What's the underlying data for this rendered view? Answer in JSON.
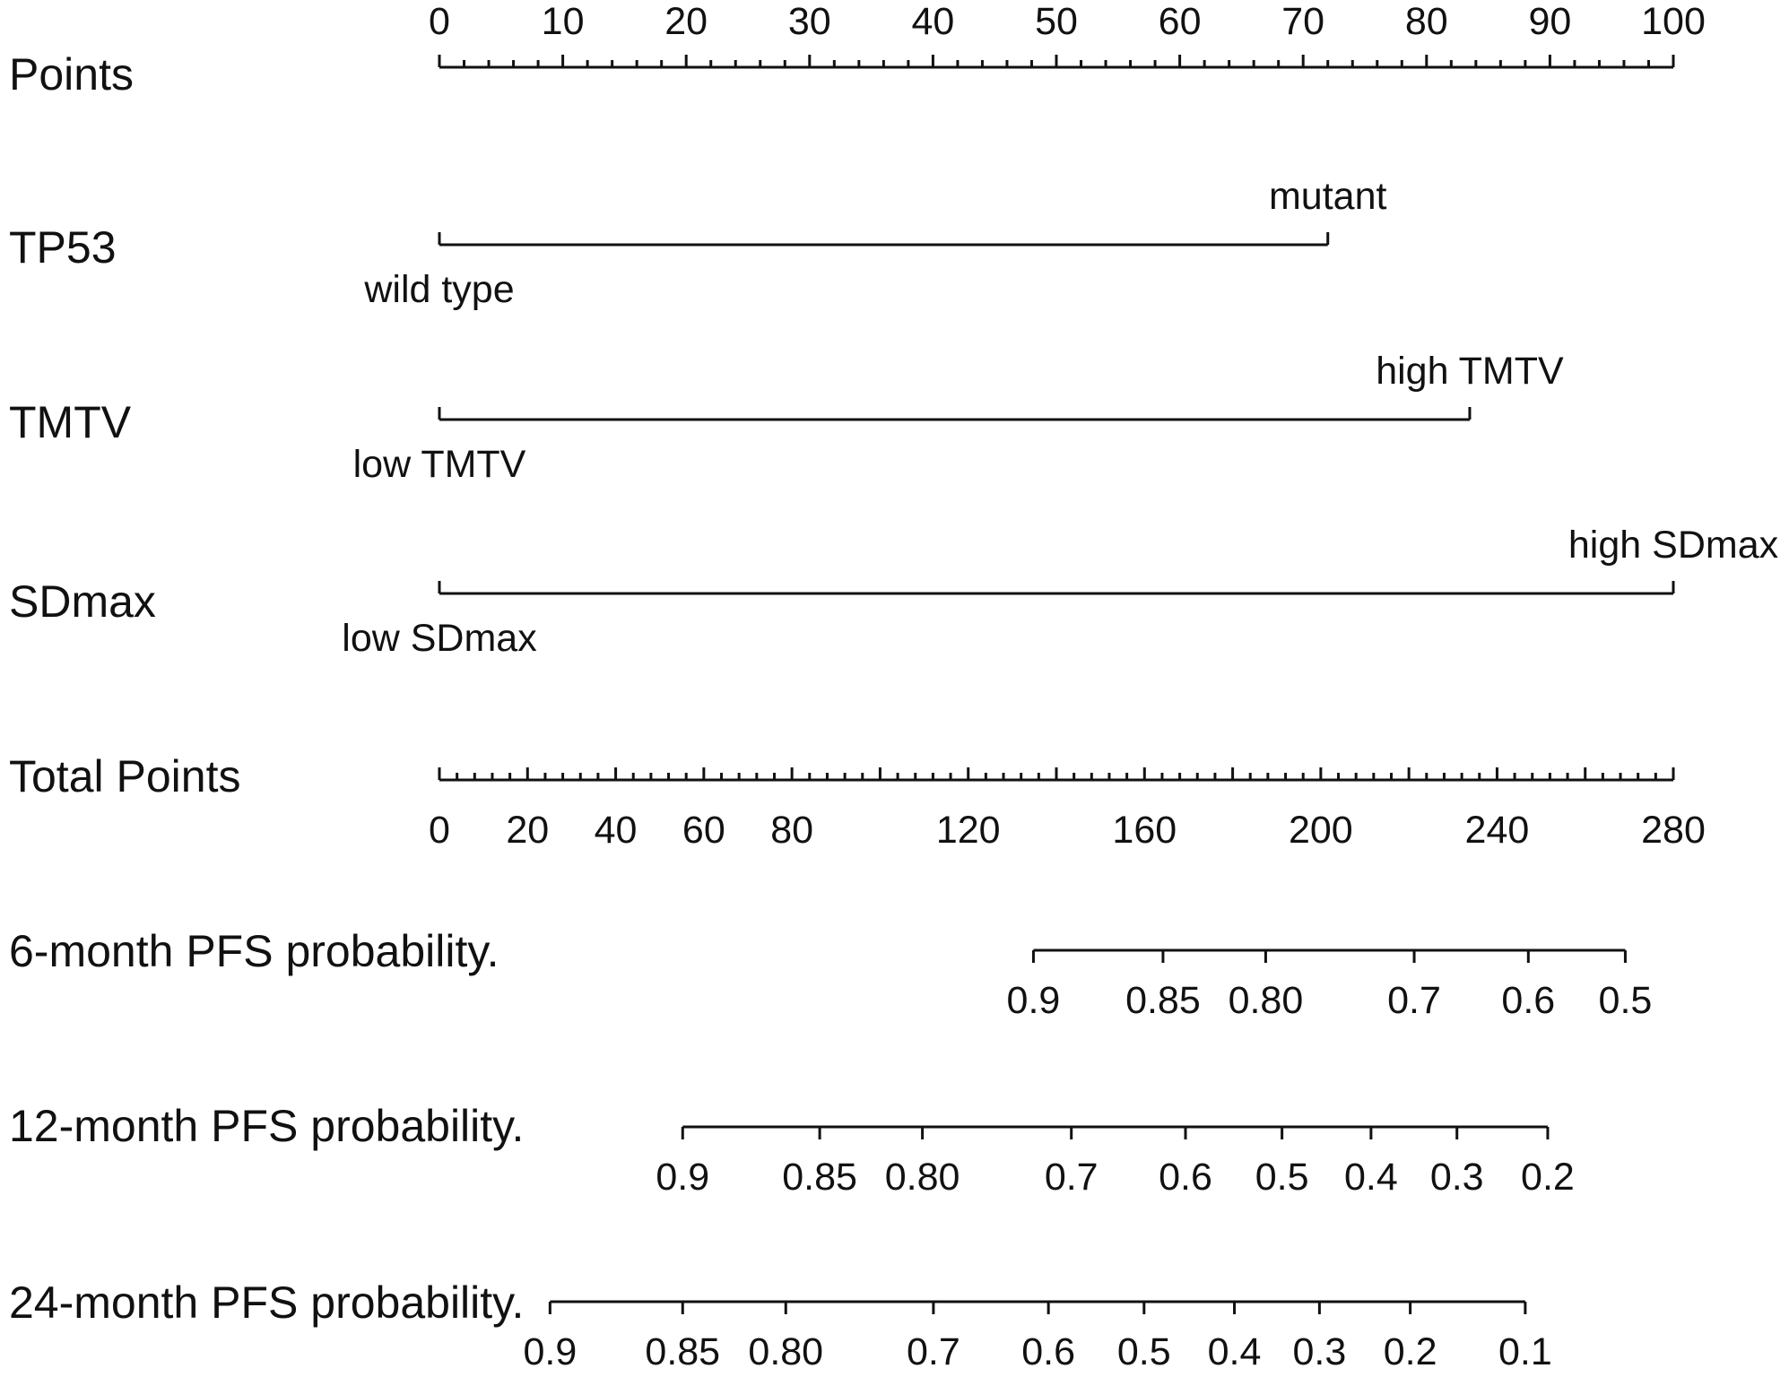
{
  "chart_data": {
    "type": "nomogram",
    "points_scale": {
      "label": "Points",
      "range": [
        0,
        100
      ],
      "tick_labels": [
        "0",
        "10",
        "20",
        "30",
        "40",
        "50",
        "60",
        "70",
        "80",
        "90",
        "100"
      ],
      "minor_tick_step": 2
    },
    "predictors": [
      {
        "id": "tp53",
        "label": "TP53",
        "levels": [
          {
            "label": "wild type",
            "points": 0
          },
          {
            "label": "mutant",
            "points": 72
          }
        ]
      },
      {
        "id": "tmtv",
        "label": "TMTV",
        "levels": [
          {
            "label": "low TMTV",
            "points": 0
          },
          {
            "label": "high TMTV",
            "points": 83.5
          }
        ]
      },
      {
        "id": "sdmax",
        "label": "SDmax",
        "levels": [
          {
            "label": "low SDmax",
            "points": 0
          },
          {
            "label": "high SDmax",
            "points": 100
          }
        ]
      }
    ],
    "total_points_scale": {
      "label": "Total Points",
      "range": [
        0,
        280
      ],
      "tick_labels": [
        "0",
        "20",
        "40",
        "60",
        "80",
        "120",
        "160",
        "200",
        "240",
        "280"
      ],
      "minor_tick_step": 4
    },
    "probability_scales": [
      {
        "id": "pfs6",
        "label": "6-month PFS probability.",
        "ticks": [
          {
            "label": "0.9",
            "total_points": 134.8
          },
          {
            "label": "0.85",
            "total_points": 164.2
          },
          {
            "label": "0.80",
            "total_points": 187.5
          },
          {
            "label": "0.7",
            "total_points": 221.2
          },
          {
            "label": "0.6",
            "total_points": 247.1
          },
          {
            "label": "0.5",
            "total_points": 269.1
          }
        ]
      },
      {
        "id": "pfs12",
        "label": "12-month PFS probability.",
        "ticks": [
          {
            "label": "0.9",
            "total_points": 55.2
          },
          {
            "label": "0.85",
            "total_points": 86.3
          },
          {
            "label": "0.80",
            "total_points": 109.6
          },
          {
            "label": "0.7",
            "total_points": 143.4
          },
          {
            "label": "0.6",
            "total_points": 169.3
          },
          {
            "label": "0.5",
            "total_points": 191.2
          },
          {
            "label": "0.4",
            "total_points": 211.4
          },
          {
            "label": "0.3",
            "total_points": 230.9
          },
          {
            "label": "0.2",
            "total_points": 251.5
          }
        ]
      },
      {
        "id": "pfs24",
        "label": "24-month PFS probability.",
        "ticks": [
          {
            "label": "0.9",
            "total_points": 25.1
          },
          {
            "label": "0.85",
            "total_points": 55.2
          },
          {
            "label": "0.80",
            "total_points": 78.6
          },
          {
            "label": "0.7",
            "total_points": 112.1
          },
          {
            "label": "0.6",
            "total_points": 138.2
          },
          {
            "label": "0.5",
            "total_points": 159.9
          },
          {
            "label": "0.4",
            "total_points": 180.4
          },
          {
            "label": "0.3",
            "total_points": 199.7
          },
          {
            "label": "0.2",
            "total_points": 220.3
          },
          {
            "label": "0.1",
            "total_points": 246.4
          }
        ]
      }
    ]
  }
}
